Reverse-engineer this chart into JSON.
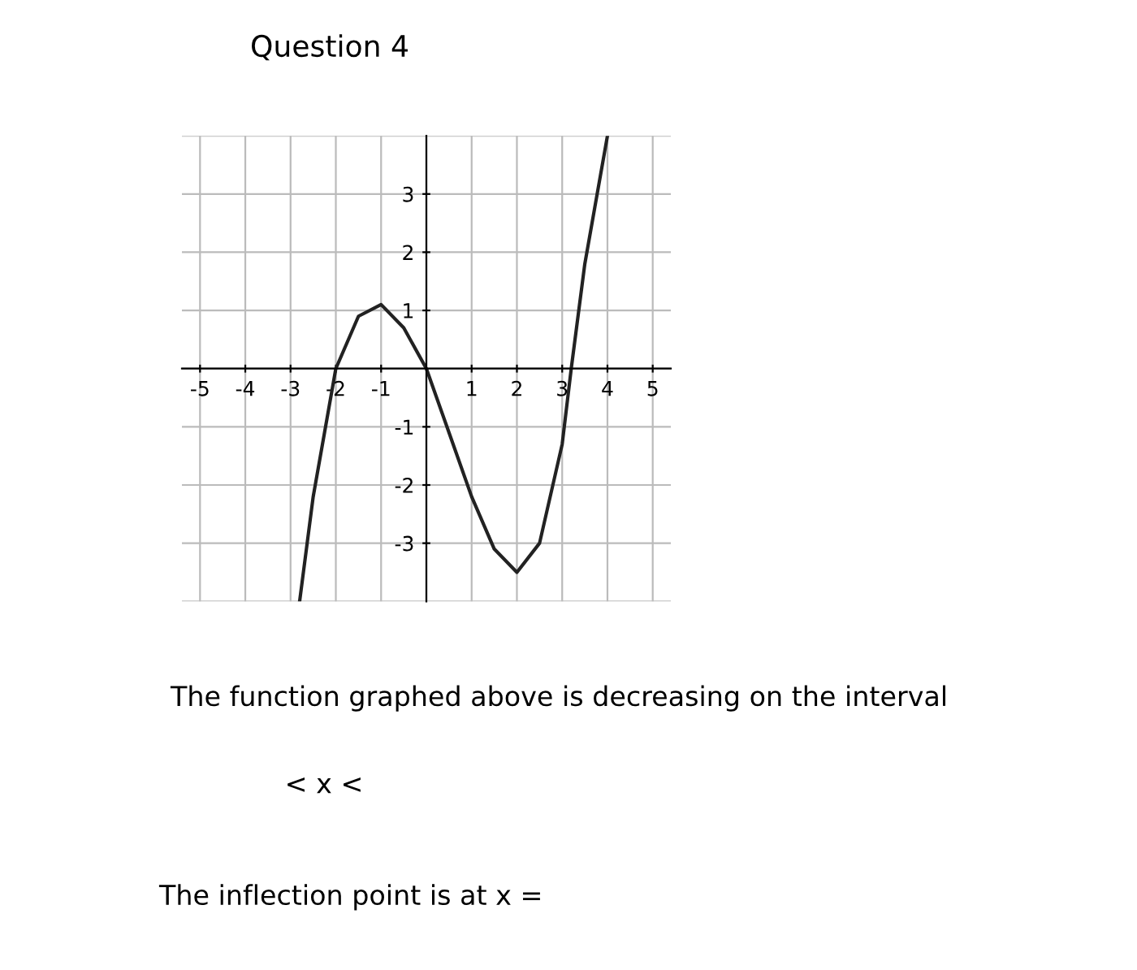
{
  "chart_data": {
    "type": "line",
    "title": "Question 4",
    "x": [
      -2.8,
      -2.5,
      -2,
      -1.5,
      -1,
      -0.5,
      0,
      0.5,
      1,
      1.5,
      2,
      2.5,
      3,
      3.2,
      3.5,
      4
    ],
    "series": [
      {
        "color": "#222222",
        "values": [
          -4,
          -2.2,
          0,
          0.9,
          1.1,
          0.7,
          0,
          -1.1,
          -2.2,
          -3.1,
          -3.5,
          -3.0,
          -1.3,
          0,
          1.8,
          4
        ]
      }
    ],
    "xlim": [
      -5.4,
      5.4
    ],
    "ylim": [
      -4,
      4
    ],
    "xticks": [
      -5,
      -4,
      -3,
      -2,
      -1,
      1,
      2,
      3,
      4,
      5
    ],
    "yticks": [
      -3,
      -2,
      -1,
      1,
      2,
      3
    ],
    "grid": true,
    "marker": "none",
    "line_style": "solid",
    "annotations": [
      "The function graphed above is decreasing on the interval",
      "< x <",
      "The inflection point is at x ="
    ]
  }
}
